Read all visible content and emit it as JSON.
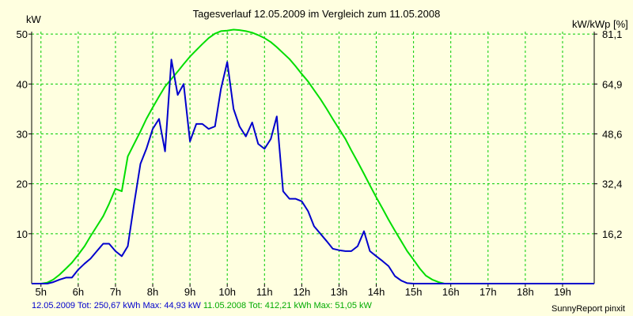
{
  "chart_data": {
    "type": "line",
    "title": "Tagesverlauf 12.05.2009 im Vergleich zum 11.05.2008",
    "ylabel_left": "kW",
    "ylabel_right": "kW/kWp [%]",
    "x_tick_labels": [
      "5h",
      "6h",
      "7h",
      "8h",
      "9h",
      "10h",
      "11h",
      "12h",
      "13h",
      "14h",
      "15h",
      "16h",
      "17h",
      "18h",
      "19h"
    ],
    "y_ticks_left": [
      10,
      20,
      30,
      40,
      50
    ],
    "y_ticks_right": [
      "16,2",
      "32,4",
      "48,6",
      "64,9",
      "81,1"
    ],
    "xlim": [
      4.75,
      19.85
    ],
    "ylim": [
      0,
      50.5
    ],
    "grid": true,
    "series": [
      {
        "name": "12.05.2009",
        "color": "#0000CC",
        "x": [
          4.75,
          5.0,
          5.17,
          5.33,
          5.5,
          5.67,
          5.83,
          6.0,
          6.17,
          6.33,
          6.5,
          6.67,
          6.83,
          7.0,
          7.17,
          7.33,
          7.5,
          7.67,
          7.83,
          8.0,
          8.17,
          8.33,
          8.5,
          8.67,
          8.83,
          9.0,
          9.17,
          9.33,
          9.5,
          9.67,
          9.83,
          10.0,
          10.17,
          10.33,
          10.5,
          10.67,
          10.83,
          11.0,
          11.17,
          11.33,
          11.5,
          11.67,
          11.83,
          12.0,
          12.17,
          12.33,
          12.5,
          12.67,
          12.83,
          13.0,
          13.17,
          13.33,
          13.5,
          13.67,
          13.83,
          14.0,
          14.17,
          14.33,
          14.5,
          14.67,
          14.83,
          15.0,
          15.17,
          15.33,
          15.5,
          15.67,
          15.83,
          16.0,
          16.17,
          16.33,
          16.5,
          16.67,
          16.83,
          17.0,
          17.17,
          17.33,
          17.5,
          17.67,
          17.83,
          18.0,
          18.17,
          18.33,
          18.5,
          18.67,
          18.83,
          19.0,
          19.17,
          19.33,
          19.5,
          19.67,
          19.85
        ],
        "y": [
          0,
          0,
          0,
          0.3,
          0.8,
          1.2,
          1.2,
          2.8,
          4.0,
          5.0,
          6.5,
          8.0,
          8.0,
          6.5,
          5.5,
          7.5,
          16.0,
          24.0,
          27.0,
          31.0,
          33.0,
          26.5,
          44.9,
          37.8,
          40.0,
          28.5,
          32.0,
          32.0,
          31.0,
          31.5,
          39.0,
          44.4,
          35.0,
          31.5,
          29.5,
          32.3,
          28.0,
          27.0,
          29.0,
          33.5,
          18.5,
          17.0,
          17.0,
          16.5,
          14.5,
          11.5,
          10.0,
          8.5,
          7.0,
          6.7,
          6.5,
          6.5,
          7.5,
          10.5,
          6.5,
          5.5,
          4.5,
          3.5,
          1.5,
          0.6,
          0.1,
          0,
          0,
          0,
          0,
          0,
          0,
          0,
          0,
          0,
          0,
          0,
          0,
          0,
          0,
          0,
          0,
          0,
          0,
          0,
          0,
          0,
          0,
          0,
          0,
          0,
          0,
          0,
          0,
          0,
          0
        ]
      },
      {
        "name": "11.05.2008",
        "color": "#00DD00",
        "x": [
          4.75,
          5.0,
          5.17,
          5.33,
          5.5,
          5.67,
          5.83,
          6.0,
          6.17,
          6.33,
          6.5,
          6.67,
          6.83,
          7.0,
          7.17,
          7.33,
          7.5,
          7.67,
          7.83,
          8.0,
          8.17,
          8.33,
          8.5,
          8.67,
          8.83,
          9.0,
          9.17,
          9.33,
          9.5,
          9.67,
          9.83,
          10.0,
          10.17,
          10.33,
          10.5,
          10.67,
          10.83,
          11.0,
          11.17,
          11.33,
          11.5,
          11.67,
          11.83,
          12.0,
          12.17,
          12.33,
          12.5,
          12.67,
          12.83,
          13.0,
          13.17,
          13.33,
          13.5,
          13.67,
          13.83,
          14.0,
          14.17,
          14.33,
          14.5,
          14.67,
          14.83,
          15.0,
          15.17,
          15.33,
          15.5,
          15.67,
          15.83,
          16.0,
          16.17,
          16.33,
          16.5,
          16.67,
          16.83,
          17.0,
          17.17,
          17.33,
          17.5,
          17.67,
          17.83,
          18.0,
          18.17,
          18.33,
          18.5,
          18.67,
          18.83,
          19.0,
          19.17,
          19.33,
          19.5,
          19.67,
          19.85
        ],
        "y": [
          0,
          0,
          0.2,
          0.8,
          1.8,
          3.0,
          4.2,
          5.8,
          7.5,
          9.5,
          11.5,
          13.5,
          16.0,
          19.0,
          18.5,
          25.5,
          28.0,
          30.5,
          33.0,
          35.3,
          37.5,
          39.5,
          41.0,
          42.5,
          44.0,
          45.5,
          46.8,
          48.0,
          49.2,
          50.1,
          50.6,
          50.7,
          50.9,
          50.8,
          50.6,
          50.3,
          49.8,
          49.2,
          48.4,
          47.4,
          46.2,
          45.0,
          43.6,
          42.0,
          40.5,
          38.8,
          37.0,
          35.0,
          33.0,
          31.0,
          29.0,
          26.7,
          24.4,
          22.0,
          19.7,
          17.3,
          15.0,
          12.8,
          10.6,
          8.5,
          6.5,
          4.8,
          3.0,
          1.6,
          0.8,
          0.3,
          0,
          0,
          0,
          0,
          0,
          0,
          0,
          0,
          0,
          0,
          0,
          0,
          0,
          0,
          0,
          0,
          0,
          0,
          0,
          0,
          0,
          0,
          0,
          0,
          0
        ]
      }
    ]
  },
  "footer": {
    "series1_text": "12.05.2009 Tot: 250,67 kWh Max: 44,93 kW",
    "series2_text": "11.05.2008 Tot: 412,21 kWh Max: 51,05 kW",
    "credit": "SunnyReport pinxit"
  },
  "colors": {
    "background": "#FFFFE0",
    "grid": "#00CC00",
    "axis": "#000000"
  }
}
